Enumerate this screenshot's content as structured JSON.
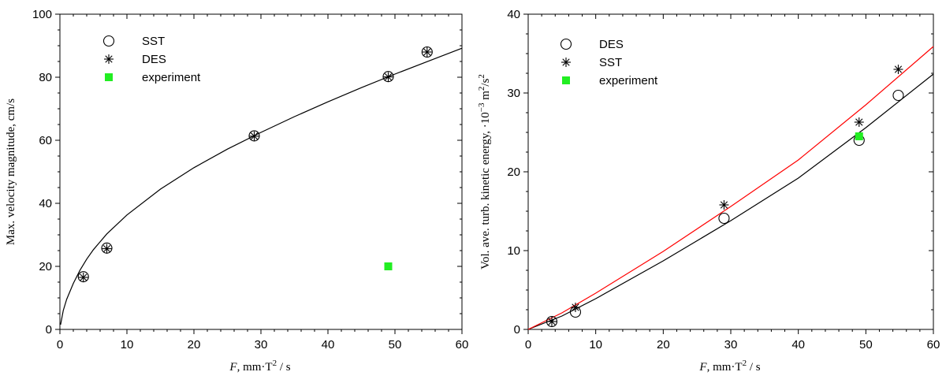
{
  "chart_data": [
    {
      "type": "scatter",
      "xlabel_var": "F",
      "xlabel_unit": ", mm·T",
      "xlabel_sup": "2",
      "xlabel_tail": " / s",
      "ylabel": "Max. velocity magnitude, cm/s",
      "xlim": [
        0,
        60
      ],
      "ylim": [
        0,
        100
      ],
      "xticks": [
        0,
        10,
        20,
        30,
        40,
        50,
        60
      ],
      "yticks": [
        0,
        20,
        40,
        60,
        80,
        100
      ],
      "legend_position": "top-left",
      "legend": [
        {
          "label": "SST",
          "marker": "circle"
        },
        {
          "label": "DES",
          "marker": "asterisk"
        },
        {
          "label": "experiment",
          "marker": "square"
        }
      ],
      "series": [
        {
          "name": "SST",
          "marker": "circle",
          "x": [
            3.5,
            7,
            29,
            49,
            54.8
          ],
          "y": [
            16.7,
            25.8,
            61.4,
            80.2,
            88
          ]
        },
        {
          "name": "DES",
          "marker": "asterisk",
          "x": [
            3.5,
            7,
            29,
            49,
            54.8
          ],
          "y": [
            16.5,
            25.6,
            61.3,
            80.1,
            88
          ]
        },
        {
          "name": "experiment",
          "marker": "square",
          "x": [
            49
          ],
          "y": [
            20
          ],
          "color": "#22ee22"
        }
      ],
      "curves": [
        {
          "color": "#000000",
          "x": [
            0.1,
            0.5,
            1,
            2,
            3,
            4,
            5,
            7,
            10,
            15,
            20,
            25,
            30,
            35,
            40,
            45,
            50,
            55,
            60
          ],
          "y": [
            1.5,
            6,
            9.5,
            14.6,
            18.8,
            22.3,
            25.3,
            30.3,
            36.3,
            44.5,
            51.3,
            57.2,
            62.5,
            67.5,
            72.2,
            76.7,
            81,
            85.1,
            89.2
          ]
        }
      ]
    },
    {
      "type": "scatter",
      "xlabel_var": "F",
      "xlabel_unit": ", mm·T",
      "xlabel_sup": "2",
      "xlabel_tail": " / s",
      "ylabel_main": "Vol. ave. turb. kinetic energy, ·10",
      "ylabel_sup1": "−3",
      "ylabel_mid": " m",
      "ylabel_sup2": "2",
      "ylabel_mid2": "/s",
      "ylabel_sup3": "2",
      "xlim": [
        0,
        60
      ],
      "ylim": [
        0,
        40
      ],
      "xticks": [
        0,
        10,
        20,
        30,
        40,
        50,
        60
      ],
      "yticks": [
        0,
        10,
        20,
        30,
        40
      ],
      "legend_position": "top-left",
      "legend": [
        {
          "label": "DES",
          "marker": "circle"
        },
        {
          "label": "SST",
          "marker": "asterisk"
        },
        {
          "label": "experiment",
          "marker": "square"
        }
      ],
      "series": [
        {
          "name": "DES",
          "marker": "circle",
          "x": [
            3.5,
            7,
            29,
            49,
            54.8
          ],
          "y": [
            1,
            2.2,
            14.1,
            24,
            29.7
          ]
        },
        {
          "name": "SST",
          "marker": "asterisk",
          "x": [
            3.5,
            7,
            29,
            49,
            54.8
          ],
          "y": [
            1,
            2.8,
            15.8,
            26.3,
            33
          ]
        },
        {
          "name": "experiment",
          "marker": "square",
          "x": [
            49
          ],
          "y": [
            24.5
          ],
          "color": "#22ee22"
        }
      ],
      "curves": [
        {
          "color": "#000000",
          "x": [
            0,
            5,
            10,
            20,
            30,
            40,
            50,
            60
          ],
          "y": [
            0,
            1.7,
            3.9,
            8.7,
            13.8,
            19.2,
            25.6,
            32.4
          ]
        },
        {
          "color": "#ff0000",
          "x": [
            0,
            5,
            10,
            20,
            30,
            40,
            50,
            60
          ],
          "y": [
            0,
            2.1,
            4.6,
            9.9,
            15.6,
            21.5,
            28.5,
            35.9
          ]
        }
      ]
    }
  ]
}
